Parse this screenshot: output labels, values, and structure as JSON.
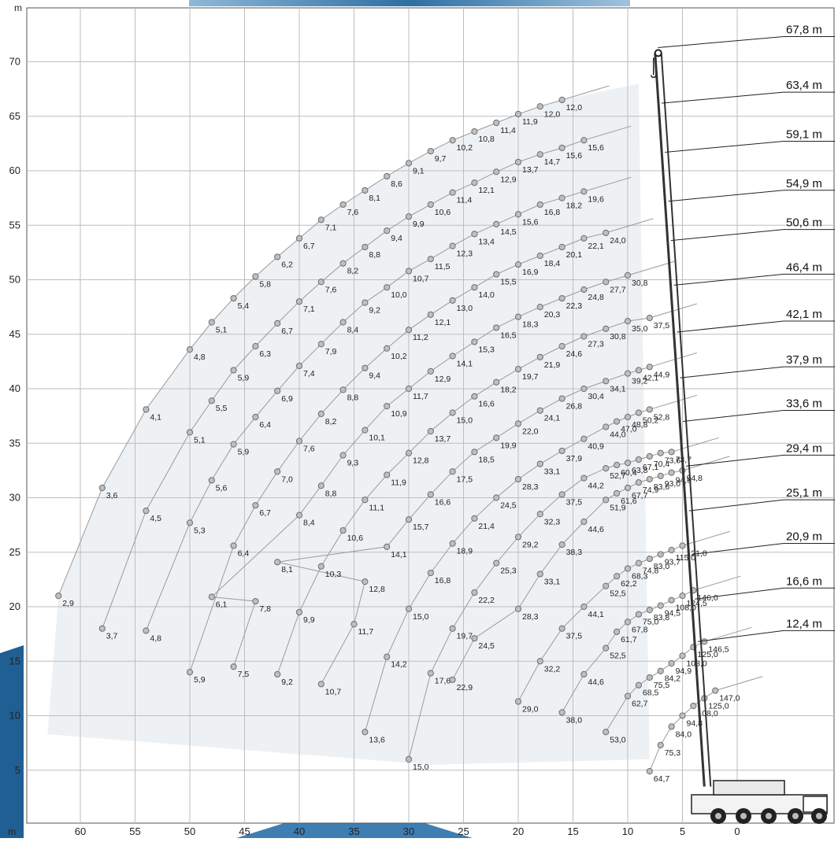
{
  "chart_data": {
    "type": "scatter",
    "title": "",
    "x_unit": "m",
    "y_unit": "m",
    "xlim": [
      -8,
      65
    ],
    "ylim": [
      0,
      74
    ],
    "x_ticks": [
      60,
      55,
      50,
      45,
      40,
      35,
      30,
      25,
      20,
      15,
      10,
      5,
      0
    ],
    "y_ticks": [
      5,
      10,
      15,
      20,
      25,
      30,
      35,
      40,
      45,
      50,
      55,
      60,
      65,
      70
    ],
    "x_axis_reversed": true,
    "grid": true,
    "boom_length_labels": [
      "67,8 m",
      "63,4 m",
      "59,1 m",
      "54,9 m",
      "50,6 m",
      "46,4 m",
      "42,1 m",
      "37,9 m",
      "33,6 m",
      "29,4 m",
      "25,1 m",
      "20,9 m",
      "16,6 m",
      "12,4 m"
    ],
    "boom_length_label_heights": [
      71.3,
      66.2,
      61.7,
      57.2,
      53.6,
      49.5,
      45.2,
      41.0,
      37.0,
      32.9,
      28.8,
      24.8,
      20.7,
      16.8
    ],
    "series": [
      {
        "points": [
          [
            62,
            21.0,
            "2,9"
          ],
          [
            58,
            30.9,
            "3,6"
          ],
          [
            54,
            38.1,
            "4,1"
          ],
          [
            50,
            43.6,
            "4,8"
          ],
          [
            48,
            46.1,
            "5,1"
          ],
          [
            46,
            48.3,
            "5,4"
          ],
          [
            44,
            50.3,
            "5,8"
          ],
          [
            42,
            52.1,
            "6,2"
          ],
          [
            40,
            53.8,
            "6,7"
          ],
          [
            38,
            55.5,
            "7,1"
          ],
          [
            36,
            56.9,
            "7,6"
          ],
          [
            34,
            58.2,
            "8,1"
          ],
          [
            32,
            59.5,
            "8,6"
          ],
          [
            30,
            60.7,
            "9,1"
          ],
          [
            28,
            61.8,
            "9,7"
          ],
          [
            26,
            62.8,
            "10,2"
          ],
          [
            24,
            63.6,
            "10,8"
          ],
          [
            22,
            64.4,
            "11,4"
          ],
          [
            20,
            65.2,
            "11,9"
          ],
          [
            18,
            65.9,
            "12,0"
          ],
          [
            16,
            66.5,
            "12,0"
          ]
        ]
      },
      {
        "points": [
          [
            58,
            18.0,
            "3,7"
          ],
          [
            54,
            28.8,
            "4,5"
          ],
          [
            50,
            36.0,
            "5,1"
          ],
          [
            48,
            38.9,
            "5,5"
          ],
          [
            46,
            41.7,
            "5,9"
          ],
          [
            44,
            43.9,
            "6,3"
          ],
          [
            42,
            46.0,
            "6,7"
          ],
          [
            40,
            48.0,
            "7,1"
          ],
          [
            38,
            49.8,
            "7,6"
          ],
          [
            36,
            51.5,
            "8,2"
          ],
          [
            34,
            53.0,
            "8,8"
          ],
          [
            32,
            54.5,
            "9,4"
          ],
          [
            30,
            55.8,
            "9,9"
          ],
          [
            28,
            56.9,
            "10,6"
          ],
          [
            26,
            58.0,
            "11,4"
          ],
          [
            24,
            58.9,
            "12,1"
          ],
          [
            22,
            59.9,
            "12,9"
          ],
          [
            20,
            60.8,
            "13,7"
          ],
          [
            18,
            61.5,
            "14,7"
          ],
          [
            16,
            62.1,
            "15,6"
          ],
          [
            14,
            62.8,
            "15,6"
          ]
        ]
      },
      {
        "points": [
          [
            54,
            17.8,
            "4,8"
          ],
          [
            50,
            27.7,
            "5,3"
          ],
          [
            48,
            31.6,
            "5,6"
          ],
          [
            46,
            34.9,
            "5,9"
          ],
          [
            44,
            37.4,
            "6,4"
          ],
          [
            42,
            39.8,
            "6,9"
          ],
          [
            40,
            42.1,
            "7,4"
          ],
          [
            38,
            44.1,
            "7,9"
          ],
          [
            36,
            46.1,
            "8,4"
          ],
          [
            34,
            47.9,
            "9,2"
          ],
          [
            32,
            49.3,
            "10,0"
          ],
          [
            30,
            50.8,
            "10,7"
          ],
          [
            28,
            51.9,
            "11,5"
          ],
          [
            26,
            53.1,
            "12,3"
          ],
          [
            24,
            54.2,
            "13,4"
          ],
          [
            22,
            55.1,
            "14,5"
          ],
          [
            20,
            56.0,
            "15,6"
          ],
          [
            18,
            56.9,
            "16,8"
          ],
          [
            16,
            57.5,
            "18,2"
          ],
          [
            14,
            58.1,
            "19,6"
          ]
        ]
      },
      {
        "points": [
          [
            50,
            14.0,
            "5,9"
          ],
          [
            46,
            25.6,
            "6,4"
          ],
          [
            44,
            29.3,
            "6,7"
          ],
          [
            42,
            32.4,
            "7,0"
          ],
          [
            40,
            35.2,
            "7,6"
          ],
          [
            38,
            37.7,
            "8,2"
          ],
          [
            36,
            39.9,
            "8,8"
          ],
          [
            34,
            41.9,
            "9,4"
          ],
          [
            32,
            43.7,
            "10,2"
          ],
          [
            30,
            45.4,
            "11,2"
          ],
          [
            28,
            46.8,
            "12,1"
          ],
          [
            26,
            48.1,
            "13,0"
          ],
          [
            24,
            49.3,
            "14,0"
          ],
          [
            22,
            50.5,
            "15,5"
          ],
          [
            20,
            51.4,
            "16,9"
          ],
          [
            18,
            52.2,
            "18,4"
          ],
          [
            16,
            53.0,
            "20,1"
          ],
          [
            14,
            53.8,
            "22,1"
          ],
          [
            12,
            54.3,
            "24,0"
          ]
        ]
      },
      {
        "points": [
          [
            48,
            20.9,
            "6,1"
          ],
          [
            46,
            14.5,
            "7,5"
          ],
          [
            44,
            20.5,
            "7,8"
          ],
          [
            40,
            28.4,
            "8,4"
          ],
          [
            38,
            31.1,
            "8,8"
          ],
          [
            36,
            33.9,
            "9,3"
          ],
          [
            34,
            36.2,
            "10,1"
          ],
          [
            32,
            38.4,
            "10,9"
          ],
          [
            30,
            40.0,
            "11,7"
          ],
          [
            28,
            41.6,
            "12,9"
          ],
          [
            26,
            43.0,
            "14,1"
          ],
          [
            24,
            44.3,
            "15,3"
          ],
          [
            22,
            45.6,
            "16,5"
          ],
          [
            20,
            46.6,
            "18,3"
          ],
          [
            18,
            47.5,
            "20,3"
          ],
          [
            16,
            48.3,
            "22,3"
          ],
          [
            14,
            49.1,
            "24,8"
          ],
          [
            12,
            49.8,
            "27,7"
          ],
          [
            10,
            50.4,
            "30,8"
          ]
        ]
      },
      {
        "points": [
          [
            42,
            13.8,
            "9,2"
          ],
          [
            40,
            19.5,
            "9,9"
          ],
          [
            38,
            23.7,
            "10,3"
          ],
          [
            36,
            27.0,
            "10,6"
          ],
          [
            34,
            29.8,
            "11,1"
          ],
          [
            32,
            32.1,
            "11,9"
          ],
          [
            30,
            34.1,
            "12,8"
          ],
          [
            28,
            36.1,
            "13,7"
          ],
          [
            26,
            37.8,
            "15,0"
          ],
          [
            24,
            39.3,
            "16,6"
          ],
          [
            22,
            40.6,
            "18,2"
          ],
          [
            20,
            41.8,
            "19,7"
          ],
          [
            18,
            42.9,
            "21,9"
          ],
          [
            16,
            43.9,
            "24,6"
          ],
          [
            14,
            44.8,
            "27,3"
          ],
          [
            12,
            45.5,
            "30,8"
          ],
          [
            10,
            46.2,
            "35,0"
          ],
          [
            8,
            46.5,
            "37,5"
          ]
        ]
      },
      {
        "points": [
          [
            42,
            24.1,
            "8,1"
          ],
          [
            38,
            12.9,
            "10,7"
          ],
          [
            35,
            18.4,
            "11,7"
          ],
          [
            34,
            22.3,
            "12,8"
          ],
          [
            32,
            25.5,
            "14,1"
          ],
          [
            30,
            28.0,
            "15,7"
          ],
          [
            28,
            30.3,
            "16,6"
          ],
          [
            26,
            32.4,
            "17,5"
          ],
          [
            24,
            34.2,
            "18,5"
          ],
          [
            22,
            35.5,
            "19,9"
          ],
          [
            20,
            36.8,
            "22,0"
          ],
          [
            18,
            38.0,
            "24,1"
          ],
          [
            16,
            39.1,
            "26,8"
          ],
          [
            14,
            40.0,
            "30,4"
          ],
          [
            12,
            40.7,
            "34,1"
          ],
          [
            10,
            41.4,
            "39,2"
          ],
          [
            9,
            41.7,
            "42,1"
          ],
          [
            8,
            42.0,
            "44,9"
          ]
        ]
      },
      {
        "points": [
          [
            34,
            8.5,
            "13,6"
          ],
          [
            32,
            15.4,
            "14,2"
          ],
          [
            30,
            19.8,
            "15,0"
          ],
          [
            28,
            23.1,
            "16,8"
          ],
          [
            26,
            25.8,
            "18,9"
          ],
          [
            24,
            28.1,
            "21,4"
          ],
          [
            22,
            30.0,
            "24,5"
          ],
          [
            20,
            31.7,
            "28,3"
          ],
          [
            18,
            33.1,
            "33,1"
          ],
          [
            16,
            34.3,
            "37,9"
          ],
          [
            14,
            35.4,
            "40,9"
          ],
          [
            12,
            36.5,
            "44,0"
          ],
          [
            11,
            37.0,
            "47,0"
          ],
          [
            10,
            37.4,
            "48,8"
          ],
          [
            9,
            37.8,
            "50,2"
          ],
          [
            8,
            38.1,
            "52,8"
          ]
        ]
      },
      {
        "points": [
          [
            30,
            6.0,
            "15,0"
          ],
          [
            28,
            13.9,
            "17,6"
          ],
          [
            26,
            18.0,
            "19,7"
          ],
          [
            24,
            21.3,
            "22,2"
          ],
          [
            22,
            24.0,
            "25,3"
          ],
          [
            20,
            26.4,
            "29,2"
          ],
          [
            18,
            28.5,
            "32,3"
          ],
          [
            16,
            30.3,
            "37,5"
          ],
          [
            14,
            31.8,
            "44,2"
          ],
          [
            12,
            32.7,
            "52,7"
          ],
          [
            11,
            33.0,
            "60,4"
          ],
          [
            10,
            33.2,
            "63,8"
          ],
          [
            9,
            33.5,
            "67,1"
          ],
          [
            8,
            33.8,
            "70,4"
          ],
          [
            7,
            34.1,
            "73,6"
          ],
          [
            6,
            34.2,
            "73,7"
          ]
        ]
      },
      {
        "points": [
          [
            26,
            13.3,
            "22,9"
          ],
          [
            24,
            17.1,
            "24,5"
          ],
          [
            20,
            19.8,
            "28,3"
          ],
          [
            18,
            23.0,
            "33,1"
          ],
          [
            16,
            25.7,
            "38,3"
          ],
          [
            14,
            27.8,
            "44,6"
          ],
          [
            12,
            29.8,
            "51,9"
          ],
          [
            11,
            30.4,
            "61,6"
          ],
          [
            10,
            30.9,
            "67,7"
          ],
          [
            9,
            31.4,
            "74,9"
          ],
          [
            8,
            31.7,
            "83,6"
          ],
          [
            7,
            32.0,
            "93,0"
          ],
          [
            6,
            32.3,
            "94,8"
          ],
          [
            5,
            32.5,
            "94,8"
          ]
        ]
      },
      {
        "points": [
          [
            20,
            11.3,
            "29,0"
          ],
          [
            18,
            15.0,
            "32,2"
          ],
          [
            16,
            18.0,
            "37,5"
          ],
          [
            14,
            20.0,
            "44,1"
          ],
          [
            12,
            21.9,
            "52,5"
          ],
          [
            11,
            22.8,
            "62,2"
          ],
          [
            10,
            23.5,
            "68,3"
          ],
          [
            9,
            24.0,
            "74,8"
          ],
          [
            8,
            24.4,
            "83,0"
          ],
          [
            7,
            24.8,
            "93,7"
          ],
          [
            6,
            25.2,
            "115,0"
          ],
          [
            5,
            25.6,
            "121,0"
          ]
        ]
      },
      {
        "points": [
          [
            16,
            10.3,
            "38,0"
          ],
          [
            14,
            13.8,
            "44,6"
          ],
          [
            12,
            16.2,
            "52,5"
          ],
          [
            11,
            17.7,
            "61,7"
          ],
          [
            10,
            18.6,
            "67,8"
          ],
          [
            9,
            19.3,
            "75,0"
          ],
          [
            8,
            19.7,
            "83,8"
          ],
          [
            7,
            20.1,
            "94,5"
          ],
          [
            6,
            20.6,
            "108,0"
          ],
          [
            5,
            21.0,
            "124,5"
          ],
          [
            4,
            21.5,
            "146,0"
          ]
        ]
      },
      {
        "points": [
          [
            12,
            8.5,
            "53,0"
          ],
          [
            10,
            11.8,
            "62,7"
          ],
          [
            9,
            12.8,
            "68,5"
          ],
          [
            8,
            13.5,
            "75,5"
          ],
          [
            7,
            14.1,
            "84,2"
          ],
          [
            6,
            14.8,
            "94,9"
          ],
          [
            5,
            15.5,
            "108,0"
          ],
          [
            4,
            16.3,
            "125,0"
          ],
          [
            3,
            16.8,
            "146,5"
          ]
        ]
      },
      {
        "points": [
          [
            8,
            4.9,
            "64,7"
          ],
          [
            7,
            7.3,
            "75,3"
          ],
          [
            6,
            9.0,
            "84,0"
          ],
          [
            5,
            10.0,
            "94,8"
          ],
          [
            4,
            10.9,
            "108,0"
          ],
          [
            3,
            11.6,
            "125,0"
          ],
          [
            2,
            12.3,
            "147,0"
          ]
        ]
      }
    ]
  }
}
